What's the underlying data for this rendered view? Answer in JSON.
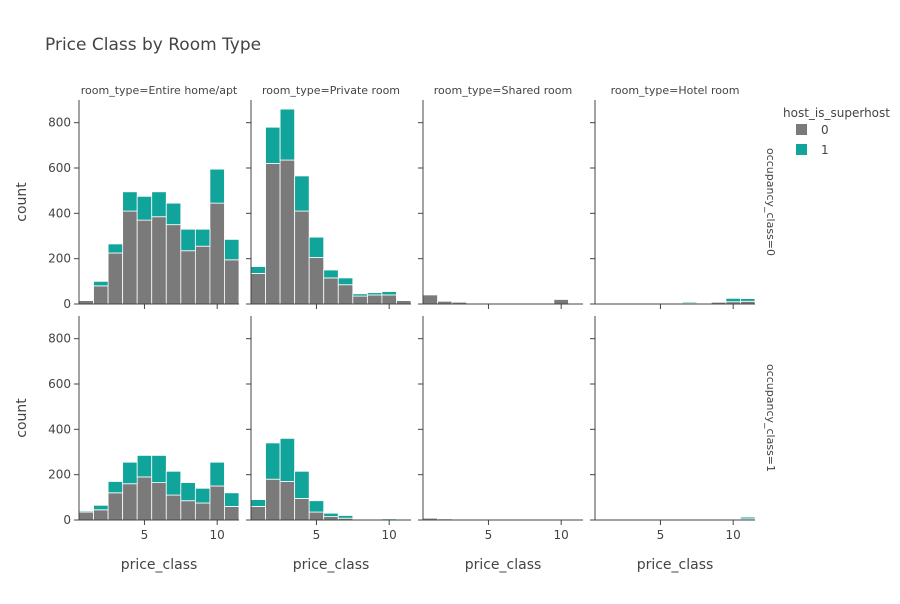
{
  "chart_data": {
    "type": "bar",
    "barmode": "stack",
    "title": "Price Class by Room Type",
    "xlabel": "price_class",
    "ylabel": "count",
    "facet_col_label_prefix": "room_type=",
    "facet_row_label_prefix": "occupancy_class=",
    "facet_cols": [
      "Entire home/apt",
      "Private room",
      "Shared room",
      "Hotel room"
    ],
    "facet_rows": [
      "0",
      "1"
    ],
    "legend": {
      "title": "host_is_superhost",
      "placement": "top-right",
      "entries": [
        {
          "name": "0",
          "color": "#7a7a7a"
        },
        {
          "name": "1",
          "color": "#10a49a"
        }
      ]
    },
    "x": [
      1,
      2,
      3,
      4,
      5,
      6,
      7,
      8,
      9,
      10,
      11
    ],
    "xlim": [
      0.5,
      11.5
    ],
    "xticks": [
      5,
      10
    ],
    "ylim": [
      0,
      900
    ],
    "yticks": [
      0,
      200,
      400,
      600,
      800
    ],
    "grid": false,
    "panels": [
      {
        "room_type": "Entire home/apt",
        "occupancy_class": "0",
        "series": [
          {
            "name": "0",
            "values": [
              15,
              80,
              225,
              410,
              370,
              385,
              350,
              235,
              255,
              445,
              195
            ]
          },
          {
            "name": "1",
            "values": [
              0,
              20,
              40,
              85,
              105,
              110,
              95,
              95,
              75,
              150,
              90
            ]
          }
        ]
      },
      {
        "room_type": "Private room",
        "occupancy_class": "0",
        "series": [
          {
            "name": "0",
            "values": [
              135,
              620,
              635,
              410,
              205,
              115,
              85,
              35,
              40,
              40,
              15
            ]
          },
          {
            "name": "1",
            "values": [
              30,
              160,
              225,
              155,
              90,
              35,
              30,
              10,
              10,
              15,
              0
            ]
          }
        ]
      },
      {
        "room_type": "Shared room",
        "occupancy_class": "0",
        "series": [
          {
            "name": "0",
            "values": [
              40,
              12,
              8,
              0,
              3,
              0,
              0,
              0,
              2,
              20,
              0
            ]
          },
          {
            "name": "1",
            "values": [
              0,
              0,
              0,
              0,
              0,
              0,
              0,
              0,
              0,
              0,
              0
            ]
          }
        ]
      },
      {
        "room_type": "Hotel room",
        "occupancy_class": "0",
        "series": [
          {
            "name": "0",
            "values": [
              0,
              0,
              0,
              0,
              3,
              0,
              5,
              0,
              8,
              10,
              12
            ]
          },
          {
            "name": "1",
            "values": [
              0,
              0,
              0,
              0,
              0,
              0,
              5,
              0,
              2,
              15,
              12
            ]
          }
        ]
      },
      {
        "room_type": "Entire home/apt",
        "occupancy_class": "1",
        "series": [
          {
            "name": "0",
            "values": [
              35,
              45,
              120,
              160,
              190,
              165,
              110,
              85,
              75,
              150,
              60
            ]
          },
          {
            "name": "1",
            "values": [
              5,
              20,
              50,
              95,
              95,
              120,
              105,
              80,
              65,
              105,
              60
            ]
          }
        ]
      },
      {
        "room_type": "Private room",
        "occupancy_class": "1",
        "series": [
          {
            "name": "0",
            "values": [
              60,
              180,
              170,
              95,
              35,
              15,
              8,
              0,
              0,
              0,
              0
            ]
          },
          {
            "name": "1",
            "values": [
              30,
              160,
              190,
              120,
              50,
              15,
              12,
              0,
              0,
              5,
              0
            ]
          }
        ]
      },
      {
        "room_type": "Shared room",
        "occupancy_class": "1",
        "series": [
          {
            "name": "0",
            "values": [
              8,
              5,
              0,
              0,
              2,
              0,
              0,
              0,
              0,
              2,
              0
            ]
          },
          {
            "name": "1",
            "values": [
              0,
              0,
              0,
              0,
              0,
              0,
              0,
              0,
              0,
              0,
              0
            ]
          }
        ]
      },
      {
        "room_type": "Hotel room",
        "occupancy_class": "1",
        "series": [
          {
            "name": "0",
            "values": [
              0,
              0,
              0,
              0,
              0,
              0,
              2,
              0,
              0,
              0,
              5
            ]
          },
          {
            "name": "1",
            "values": [
              0,
              0,
              0,
              0,
              0,
              0,
              2,
              0,
              0,
              0,
              8
            ]
          }
        ]
      }
    ]
  }
}
